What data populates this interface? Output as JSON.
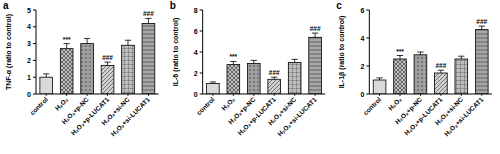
{
  "chart_data": [
    {
      "type": "bar",
      "title": "a",
      "y_label": "TNF-α (ratio to control)",
      "categories": [
        "control",
        "H₂O₂",
        "H₂O₂+p-NC",
        "H₂O₂+p-LUCAT1",
        "H₂O₂+si-NC",
        "H₂O₂+si-LUCAT1"
      ],
      "values": [
        1.0,
        2.7,
        3.0,
        1.7,
        2.9,
        4.2
      ],
      "errors": [
        0.2,
        0.3,
        0.3,
        0.2,
        0.3,
        0.3
      ],
      "annotations": [
        null,
        "***",
        null,
        "###",
        null,
        "###"
      ],
      "colors": [
        "#d9d9d9",
        "#bdbdbd",
        "#a0a0a0",
        "#d0d0d0",
        "#bdbdbd",
        "#a8a8a8"
      ],
      "ylim": [
        0,
        5
      ],
      "yticks": [
        0,
        1,
        2,
        3,
        4,
        5
      ],
      "grid": false
    },
    {
      "type": "bar",
      "title": "b",
      "y_label": "IL-6 (ratio to control)",
      "categories": [
        "control",
        "H₂O₂",
        "H₂O₂+p-NC",
        "H₂O₂+p-LUCAT1",
        "H₂O₂+si-NC",
        "H₂O₂+si-LUCAT1"
      ],
      "values": [
        1.0,
        2.8,
        2.9,
        1.4,
        3.0,
        5.4
      ],
      "errors": [
        0.15,
        0.3,
        0.3,
        0.2,
        0.3,
        0.4
      ],
      "annotations": [
        null,
        "***",
        null,
        "###",
        null,
        "###"
      ],
      "colors": [
        "#d9d9d9",
        "#bdbdbd",
        "#a0a0a0",
        "#d0d0d0",
        "#bdbdbd",
        "#a8a8a8"
      ],
      "ylim": [
        0,
        8
      ],
      "yticks": [
        0,
        2,
        4,
        6,
        8
      ],
      "grid": false
    },
    {
      "type": "bar",
      "title": "c",
      "y_label": "IL-1β (ratio to control)",
      "categories": [
        "control",
        "H₂O₂",
        "H₂O₂+p-NC",
        "H₂O₂+p-LUCAT1",
        "H₂O₂+si-NC",
        "H₂O₂+si-LUCAT1"
      ],
      "values": [
        1.0,
        2.5,
        2.8,
        1.5,
        2.5,
        4.6
      ],
      "errors": [
        0.15,
        0.25,
        0.2,
        0.2,
        0.2,
        0.25
      ],
      "annotations": [
        null,
        "***",
        null,
        "###",
        null,
        "###"
      ],
      "colors": [
        "#d9d9d9",
        "#bdbdbd",
        "#a0a0a0",
        "#d0d0d0",
        "#bdbdbd",
        "#a8a8a8"
      ],
      "ylim": [
        0,
        6
      ],
      "yticks": [
        0,
        2,
        4,
        6
      ],
      "grid": false
    }
  ]
}
